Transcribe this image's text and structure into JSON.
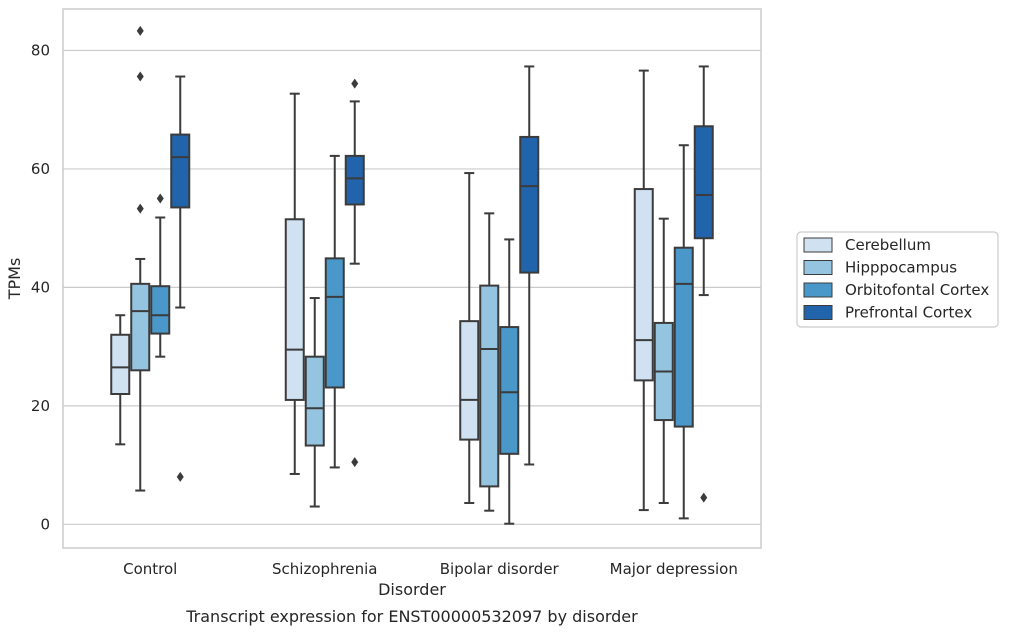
{
  "chart_data": {
    "type": "box",
    "title": "",
    "caption": "Transcript expression for ENST00000532097 by disorder",
    "xlabel": "Disorder",
    "ylabel": "TPMs",
    "ylim": [
      -4,
      87
    ],
    "yticks": [
      0,
      20,
      40,
      60,
      80
    ],
    "grid": "horizontal",
    "legend_position": "right",
    "categories": [
      "Control",
      "Schizophrenia",
      "Bipolar disorder",
      "Major depression"
    ],
    "series": [
      {
        "name": "Cerebellum",
        "color": "#d0e1f2",
        "boxes": [
          {
            "whislo": 13.5,
            "q1": 22.0,
            "med": 26.5,
            "q3": 32.0,
            "whishi": 35.3,
            "fliers": []
          },
          {
            "whislo": 8.5,
            "q1": 21.0,
            "med": 29.5,
            "q3": 51.5,
            "whishi": 72.7,
            "fliers": []
          },
          {
            "whislo": 3.6,
            "q1": 14.3,
            "med": 21.0,
            "q3": 34.3,
            "whishi": 59.3,
            "fliers": []
          },
          {
            "whislo": 2.4,
            "q1": 24.3,
            "med": 31.1,
            "q3": 56.6,
            "whishi": 76.6,
            "fliers": []
          }
        ]
      },
      {
        "name": "Hipppocampus",
        "color": "#94c4df",
        "boxes": [
          {
            "whislo": 5.7,
            "q1": 26.0,
            "med": 36.0,
            "q3": 40.6,
            "whishi": 44.8,
            "fliers": [
              53.3,
              75.6,
              83.3
            ]
          },
          {
            "whislo": 3.0,
            "q1": 13.3,
            "med": 19.6,
            "q3": 28.3,
            "whishi": 38.2,
            "fliers": []
          },
          {
            "whislo": 2.3,
            "q1": 6.4,
            "med": 29.6,
            "q3": 40.3,
            "whishi": 52.5,
            "fliers": []
          },
          {
            "whislo": 3.6,
            "q1": 17.6,
            "med": 25.8,
            "q3": 34.0,
            "whishi": 51.6,
            "fliers": []
          }
        ]
      },
      {
        "name": "Orbitofontal Cortex",
        "color": "#4a98c9",
        "boxes": [
          {
            "whislo": 28.3,
            "q1": 32.2,
            "med": 35.3,
            "q3": 40.2,
            "whishi": 51.8,
            "fliers": [
              55.0
            ]
          },
          {
            "whislo": 9.6,
            "q1": 23.1,
            "med": 38.4,
            "q3": 44.9,
            "whishi": 62.2,
            "fliers": []
          },
          {
            "whislo": 0.1,
            "q1": 11.9,
            "med": 22.3,
            "q3": 33.3,
            "whishi": 48.1,
            "fliers": []
          },
          {
            "whislo": 1.0,
            "q1": 16.5,
            "med": 40.6,
            "q3": 46.7,
            "whishi": 64.0,
            "fliers": []
          }
        ]
      },
      {
        "name": "Prefrontal Cortex",
        "color": "#2164ab",
        "boxes": [
          {
            "whislo": 36.6,
            "q1": 53.5,
            "med": 62.0,
            "q3": 65.8,
            "whishi": 75.6,
            "fliers": [
              8.0
            ]
          },
          {
            "whislo": 44.0,
            "q1": 54.0,
            "med": 58.4,
            "q3": 62.2,
            "whishi": 71.4,
            "fliers": [
              10.5,
              74.4
            ]
          },
          {
            "whislo": 10.1,
            "q1": 42.5,
            "med": 57.1,
            "q3": 65.4,
            "whishi": 77.3,
            "fliers": []
          },
          {
            "whislo": 38.7,
            "q1": 48.3,
            "med": 55.6,
            "q3": 67.2,
            "whishi": 77.3,
            "fliers": [
              4.5
            ]
          }
        ]
      }
    ]
  }
}
